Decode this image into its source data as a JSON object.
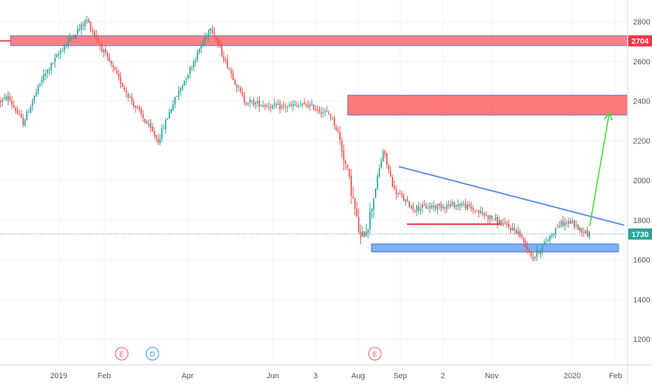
{
  "colors": {
    "up": "#26a69a",
    "down": "#ef5350",
    "grid": "#f0f3fa",
    "axis_text": "#50535e",
    "resistance_zone": "#ff6b6b",
    "support_zone": "#6fa8f5",
    "trendline": "#5b8def",
    "red_line": "#e8262e",
    "arrow": "#3be02a",
    "label_red": "#f23645",
    "label_green": "#26a69a",
    "current_price_line": "#26a69a"
  },
  "chart_data": {
    "type": "candlestick",
    "ylim": [
      1070,
      2910
    ],
    "y_ticks": [
      1200,
      1400,
      1600,
      1800,
      2000,
      2200,
      2400,
      2600,
      2800
    ],
    "x_ticks": [
      "2019",
      "Feb",
      "Apr",
      "Jun",
      "3",
      "Aug",
      "Sep",
      "2",
      "Nov",
      "2020",
      "Feb"
    ],
    "price_labels": {
      "high_zone_label": "2704",
      "last_price_label": "1730"
    },
    "path_anchors": [
      {
        "bar": 0,
        "close": 2400
      },
      {
        "bar": 4,
        "close": 2420
      },
      {
        "bar": 12,
        "close": 2290
      },
      {
        "bar": 22,
        "close": 2510
      },
      {
        "bar": 34,
        "close": 2680
      },
      {
        "bar": 46,
        "close": 2810
      },
      {
        "bar": 52,
        "close": 2700
      },
      {
        "bar": 60,
        "close": 2560
      },
      {
        "bar": 70,
        "close": 2400
      },
      {
        "bar": 84,
        "close": 2200
      },
      {
        "bar": 92,
        "close": 2390
      },
      {
        "bar": 104,
        "close": 2620
      },
      {
        "bar": 112,
        "close": 2780
      },
      {
        "bar": 118,
        "close": 2640
      },
      {
        "bar": 130,
        "close": 2400
      },
      {
        "bar": 148,
        "close": 2370
      },
      {
        "bar": 164,
        "close": 2380
      },
      {
        "bar": 176,
        "close": 2330
      },
      {
        "bar": 180,
        "close": 2240
      },
      {
        "bar": 186,
        "close": 2000
      },
      {
        "bar": 192,
        "close": 1700
      },
      {
        "bar": 196,
        "close": 1780
      },
      {
        "bar": 204,
        "close": 2150
      },
      {
        "bar": 210,
        "close": 1950
      },
      {
        "bar": 220,
        "close": 1860
      },
      {
        "bar": 232,
        "close": 1870
      },
      {
        "bar": 246,
        "close": 1880
      },
      {
        "bar": 262,
        "close": 1810
      },
      {
        "bar": 276,
        "close": 1740
      },
      {
        "bar": 284,
        "close": 1610
      },
      {
        "bar": 290,
        "close": 1680
      },
      {
        "bar": 298,
        "close": 1780
      },
      {
        "bar": 304,
        "close": 1790
      },
      {
        "bar": 308,
        "close": 1760
      },
      {
        "bar": 314,
        "close": 1730
      }
    ],
    "shapes": {
      "resistance_zone_top": {
        "price_low": 2680,
        "price_high": 2730
      },
      "resistance_zone_mid": {
        "price_low": 2330,
        "price_high": 2430
      },
      "support_zone": {
        "price_low": 1640,
        "price_high": 1680
      },
      "descending_trendline": {
        "start_price": 2070,
        "end_price": 1775
      },
      "red_horizontal_line": {
        "price": 1780
      },
      "green_arrow": {
        "start_price": 1770,
        "end_price": 2340
      }
    },
    "event_markers": [
      {
        "letter": "E",
        "color": "#ef5350"
      },
      {
        "letter": "D",
        "color": "#2196f3"
      },
      {
        "letter": "E",
        "color": "#ef5350"
      }
    ]
  }
}
